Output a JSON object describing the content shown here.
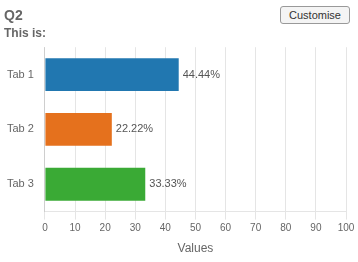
{
  "chart_data": {
    "type": "bar",
    "orientation": "horizontal",
    "title": "Q2",
    "subtitle": "This is:",
    "annotations": [
      "Customise"
    ],
    "categories": [
      "Tab 1",
      "Tab 2",
      "Tab 3"
    ],
    "values": [
      44.44,
      22.22,
      33.33
    ],
    "value_labels": [
      "44.44%",
      "22.22%",
      "33.33%"
    ],
    "data_labels": true,
    "colors": [
      "#2177b0",
      "#e5711d",
      "#3aaa35"
    ],
    "xlabel": "Values",
    "xlim": [
      0,
      100
    ],
    "xticks": [
      0,
      10,
      20,
      30,
      40,
      50,
      60,
      70,
      80,
      90,
      100
    ],
    "grid": true
  }
}
